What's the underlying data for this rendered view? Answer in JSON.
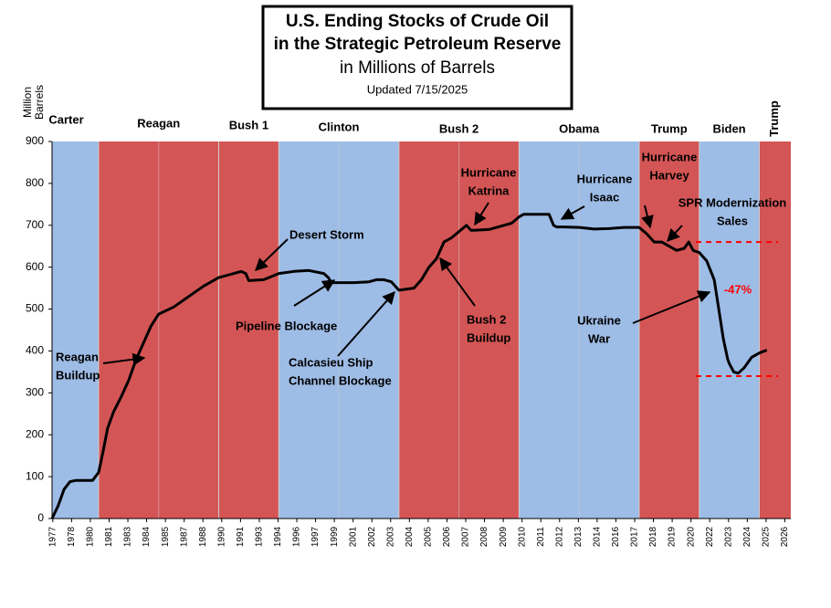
{
  "chart_data": {
    "type": "line",
    "title": [
      "U.S. Ending Stocks of Crude Oil",
      "in the Strategic Petroleum Reserve"
    ],
    "subtitle": "in Millions of Barrels",
    "updated": "Updated 7/15/2025",
    "ylabel": [
      "Million",
      "Barrels"
    ],
    "xlim": [
      1977.9,
      2027.1
    ],
    "ylim": [
      0,
      900
    ],
    "yticks": [
      0,
      100,
      200,
      300,
      400,
      500,
      600,
      700,
      800,
      900
    ],
    "xticks": [
      {
        "value": 1977.95,
        "label": "1977"
      },
      {
        "value": 1979.2,
        "label": "1978"
      },
      {
        "value": 1980.45,
        "label": "1980"
      },
      {
        "value": 1981.7,
        "label": "1981"
      },
      {
        "value": 1982.95,
        "label": "1983"
      },
      {
        "value": 1984.2,
        "label": "1984"
      },
      {
        "value": 1985.45,
        "label": "1985"
      },
      {
        "value": 1986.7,
        "label": "1987"
      },
      {
        "value": 1987.95,
        "label": "1988"
      },
      {
        "value": 1989.2,
        "label": "1990"
      },
      {
        "value": 1990.45,
        "label": "1991"
      },
      {
        "value": 1991.7,
        "label": "1993"
      },
      {
        "value": 1992.95,
        "label": "1994"
      },
      {
        "value": 1994.2,
        "label": "1996"
      },
      {
        "value": 1995.45,
        "label": "1997"
      },
      {
        "value": 1996.7,
        "label": "1999"
      },
      {
        "value": 1997.95,
        "label": "2001"
      },
      {
        "value": 1999.2,
        "label": "2002"
      },
      {
        "value": 2000.45,
        "label": "2003"
      },
      {
        "value": 2001.7,
        "label": "2004"
      },
      {
        "value": 2002.95,
        "label": "2005"
      },
      {
        "value": 2004.2,
        "label": "2006"
      },
      {
        "value": 2005.45,
        "label": "2007"
      },
      {
        "value": 2006.7,
        "label": "2008"
      },
      {
        "value": 2007.95,
        "label": "2009"
      },
      {
        "value": 2009.2,
        "label": "2010"
      },
      {
        "value": 2010.45,
        "label": "2011"
      },
      {
        "value": 2011.7,
        "label": "2012"
      },
      {
        "value": 2012.95,
        "label": "2013"
      },
      {
        "value": 2014.2,
        "label": "2014"
      },
      {
        "value": 2015.45,
        "label": "2016"
      },
      {
        "value": 2016.7,
        "label": "2017"
      },
      {
        "value": 2017.95,
        "label": "2018"
      },
      {
        "value": 2019.2,
        "label": "2019"
      },
      {
        "value": 2020.45,
        "label": "2020"
      },
      {
        "value": 2021.7,
        "label": "2022"
      },
      {
        "value": 2022.95,
        "label": "2023"
      },
      {
        "value": 2024.2,
        "label": "2024"
      },
      {
        "value": 2025.45,
        "label": "2025"
      },
      {
        "value": 2026.7,
        "label": "2026"
      }
    ],
    "presidents": [
      {
        "name": "Carter",
        "start": 1977.9,
        "end": 1981,
        "color": "#9dbce6"
      },
      {
        "name": "Reagan",
        "start": 1981,
        "end": 1989,
        "color": "#d45555"
      },
      {
        "name": "Bush 1",
        "start": 1989,
        "end": 1993,
        "color": "#d45555"
      },
      {
        "name": "Clinton",
        "start": 1993,
        "end": 2001,
        "color": "#9dbce6"
      },
      {
        "name": "Bush 2",
        "start": 2001,
        "end": 2009,
        "color": "#d45555"
      },
      {
        "name": "Obama",
        "start": 2009,
        "end": 2017,
        "color": "#9dbce6"
      },
      {
        "name": "Trump",
        "start": 2017,
        "end": 2021,
        "color": "#d45555"
      },
      {
        "name": "Biden",
        "start": 2021,
        "end": 2025,
        "color": "#9dbce6"
      },
      {
        "name": "Trump",
        "start": 2025,
        "end": 2027.1,
        "color": "#d45555"
      }
    ],
    "series": [
      {
        "name": "SPR Stocks",
        "color": "#000000",
        "x": [
          1977.9,
          1978.3,
          1978.7,
          1979.1,
          1979.5,
          1980.6,
          1981,
          1981.3,
          1981.6,
          1982,
          1982.5,
          1983,
          1983.5,
          1984,
          1984.5,
          1985,
          1986,
          1987,
          1988,
          1989,
          1990,
          1990.5,
          1990.8,
          1991,
          1992,
          1993,
          1994,
          1995,
          1996,
          1996.3,
          1996.5,
          1998,
          1999,
          1999.5,
          2000,
          2000.5,
          2001,
          2002,
          2002.5,
          2003,
          2003.5,
          2004,
          2004.5,
          2005,
          2005.5,
          2005.8,
          2006,
          2007,
          2008,
          2008.5,
          2009,
          2009.3,
          2010.5,
          2011,
          2011.3,
          2011.5,
          2012,
          2013,
          2014,
          2015,
          2016,
          2017,
          2017.5,
          2018,
          2018.5,
          2019,
          2019.5,
          2020,
          2020.3,
          2020.6,
          2021,
          2021.5,
          2022,
          2022.3,
          2022.6,
          2022.9,
          2023,
          2023.3,
          2023.6,
          2024,
          2024.5,
          2025,
          2025.5
        ],
        "values": [
          0,
          30,
          70,
          88,
          91,
          91,
          110,
          160,
          215,
          255,
          290,
          330,
          380,
          420,
          460,
          488,
          505,
          530,
          555,
          575,
          585,
          590,
          585,
          568,
          570,
          585,
          590,
          592,
          585,
          575,
          563,
          563,
          565,
          570,
          570,
          565,
          545,
          550,
          570,
          600,
          620,
          660,
          670,
          685,
          700,
          688,
          688,
          690,
          700,
          705,
          720,
          726,
          726,
          726,
          700,
          696,
          696,
          695,
          691,
          692,
          695,
          695,
          680,
          660,
          660,
          650,
          640,
          645,
          660,
          640,
          635,
          615,
          570,
          500,
          430,
          380,
          370,
          350,
          347,
          360,
          385,
          395,
          402
        ]
      }
    ],
    "reference_lines": [
      {
        "value": 660,
        "color": "#ff0000"
      },
      {
        "value": 340,
        "color": "#ff0000"
      }
    ],
    "annotations": [
      {
        "lines": [
          "Reagan",
          "Buildup"
        ]
      },
      {
        "lines": [
          "Desert Storm"
        ]
      },
      {
        "lines": [
          "Pipeline Blockage"
        ]
      },
      {
        "lines": [
          "Calcasieu Ship",
          "Channel Blockage"
        ]
      },
      {
        "lines": [
          "Bush 2",
          "Buildup"
        ]
      },
      {
        "lines": [
          "Hurricane",
          "Katrina"
        ]
      },
      {
        "lines": [
          "Hurricane",
          "Isaac"
        ]
      },
      {
        "lines": [
          "Hurricane",
          "Harvey"
        ]
      },
      {
        "lines": [
          "SPR Modernization",
          "Sales"
        ]
      },
      {
        "lines": [
          "Ukraine",
          "War"
        ]
      },
      {
        "lines": [
          "-47%"
        ],
        "color": "#ff0000"
      }
    ]
  }
}
